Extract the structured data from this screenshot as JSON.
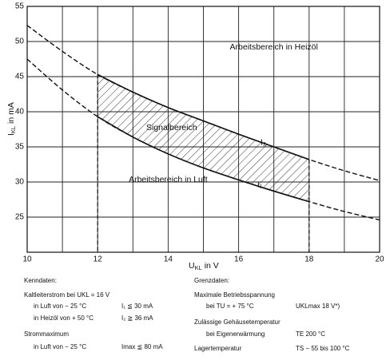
{
  "chart_data": {
    "type": "line",
    "x_label": {
      "main": "U",
      "sub": "KL",
      "tail": " in V"
    },
    "y_label": {
      "main": "I",
      "sub": "KL",
      "tail": " in mA"
    },
    "x": [
      10,
      11,
      12,
      13,
      14,
      15,
      16,
      17,
      18,
      19,
      20
    ],
    "series": [
      {
        "name": "I₂",
        "color": "#111111",
        "values": [
          52.3,
          48.6,
          45.3,
          42.8,
          40.6,
          38.7,
          36.8,
          35.0,
          33.2,
          31.6,
          30.2
        ]
      },
      {
        "name": "I₁",
        "color": "#111111",
        "values": [
          47.5,
          43.1,
          39.3,
          36.4,
          34.0,
          32.0,
          30.3,
          28.7,
          27.2,
          25.8,
          24.6
        ]
      }
    ],
    "band": [
      12,
      18
    ],
    "xlim": [
      10,
      20
    ],
    "xticks": [
      10,
      12,
      14,
      16,
      18,
      20
    ],
    "x_minor_grid": [
      11,
      13,
      15,
      17,
      19
    ],
    "ylim": [
      20,
      55
    ],
    "yticks": [
      25,
      30,
      35,
      40,
      45,
      50,
      55
    ],
    "grid": true,
    "annotations": [
      {
        "text": "Arbeitsbereich in Heizöl",
        "x": 17,
        "y": 49.2
      },
      {
        "text": "Signalbereich",
        "x": 14.1,
        "y": 37.7
      },
      {
        "text": "Arbeitsbereich in Luft",
        "x": 14,
        "y": 30.3
      },
      {
        "text": "I₂",
        "x": 16.7,
        "y": 35.6
      },
      {
        "text": "I₁",
        "x": 16.6,
        "y": 29.6
      }
    ]
  },
  "specs": {
    "left": {
      "title": "Kenndaten:",
      "rows": [
        {
          "label": "Kaltleiterstrom bei UKL = 16 V"
        },
        {
          "label": "in Luft von − 25 °C",
          "value": "I₁ ≦ 30 mA"
        },
        {
          "label": "in Heizöl von + 50 °C",
          "value": "I₂ ≧ 36 mA"
        },
        {
          "label": "Strommaximum"
        },
        {
          "label": "in Luft von − 25 °C",
          "value": "Imax ≦ 80 mA"
        }
      ]
    },
    "right": {
      "title": "Grenzdaten:",
      "rows": [
        {
          "label": "Maximale Betriebsspannung"
        },
        {
          "label": "bei TU = + 75 °C",
          "value": "UKLmax 18 V*)"
        },
        {
          "label": "Zulässige Gehäusetemperatur"
        },
        {
          "label": "bei Eigenerwärmung",
          "value": "TE 200 °C"
        },
        {
          "label": "Lagertemperatur",
          "value": "TS − 55 bis 100 °C"
        }
      ]
    }
  }
}
